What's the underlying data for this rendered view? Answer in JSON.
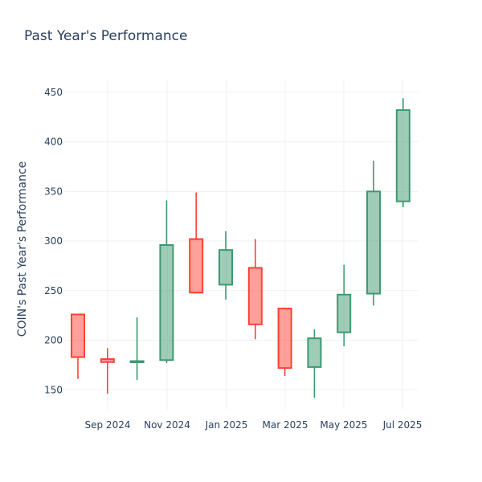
{
  "chart_data": {
    "type": "candlestick",
    "title": "Past Year's Performance",
    "ylabel": "COIN's Past Year's Performance",
    "xlabel": "",
    "ylim": [
      130,
      462
    ],
    "y_ticks": [
      150,
      200,
      250,
      300,
      350,
      400,
      450
    ],
    "x_ticks": [
      "Sep 2024",
      "Nov 2024",
      "Jan 2025",
      "Mar 2025",
      "May 2025",
      "Jul 2025"
    ],
    "grid": true,
    "increasing_color": "#3d9970",
    "decreasing_color": "#ff4136",
    "candles": [
      {
        "period": "Aug 2024",
        "open": 226,
        "high": 226,
        "low": 161,
        "close": 183
      },
      {
        "period": "Sep 2024",
        "open": 181,
        "high": 192,
        "low": 146,
        "close": 178
      },
      {
        "period": "Oct 2024",
        "open": 178,
        "high": 223,
        "low": 160,
        "close": 179
      },
      {
        "period": "Nov 2024",
        "open": 180,
        "high": 341,
        "low": 177,
        "close": 296
      },
      {
        "period": "Dec 2024",
        "open": 302,
        "high": 349,
        "low": 247,
        "close": 248
      },
      {
        "period": "Jan 2025",
        "open": 256,
        "high": 310,
        "low": 241,
        "close": 291
      },
      {
        "period": "Feb 2025",
        "open": 273,
        "high": 302,
        "low": 201,
        "close": 216
      },
      {
        "period": "Mar 2025",
        "open": 232,
        "high": 233,
        "low": 164,
        "close": 172
      },
      {
        "period": "Apr 2025",
        "open": 173,
        "high": 211,
        "low": 142,
        "close": 202
      },
      {
        "period": "May 2025",
        "open": 208,
        "high": 276,
        "low": 194,
        "close": 246
      },
      {
        "period": "Jun 2025",
        "open": 247,
        "high": 381,
        "low": 235,
        "close": 350
      },
      {
        "period": "Jul 2025",
        "open": 340,
        "high": 444,
        "low": 334,
        "close": 432
      }
    ]
  }
}
